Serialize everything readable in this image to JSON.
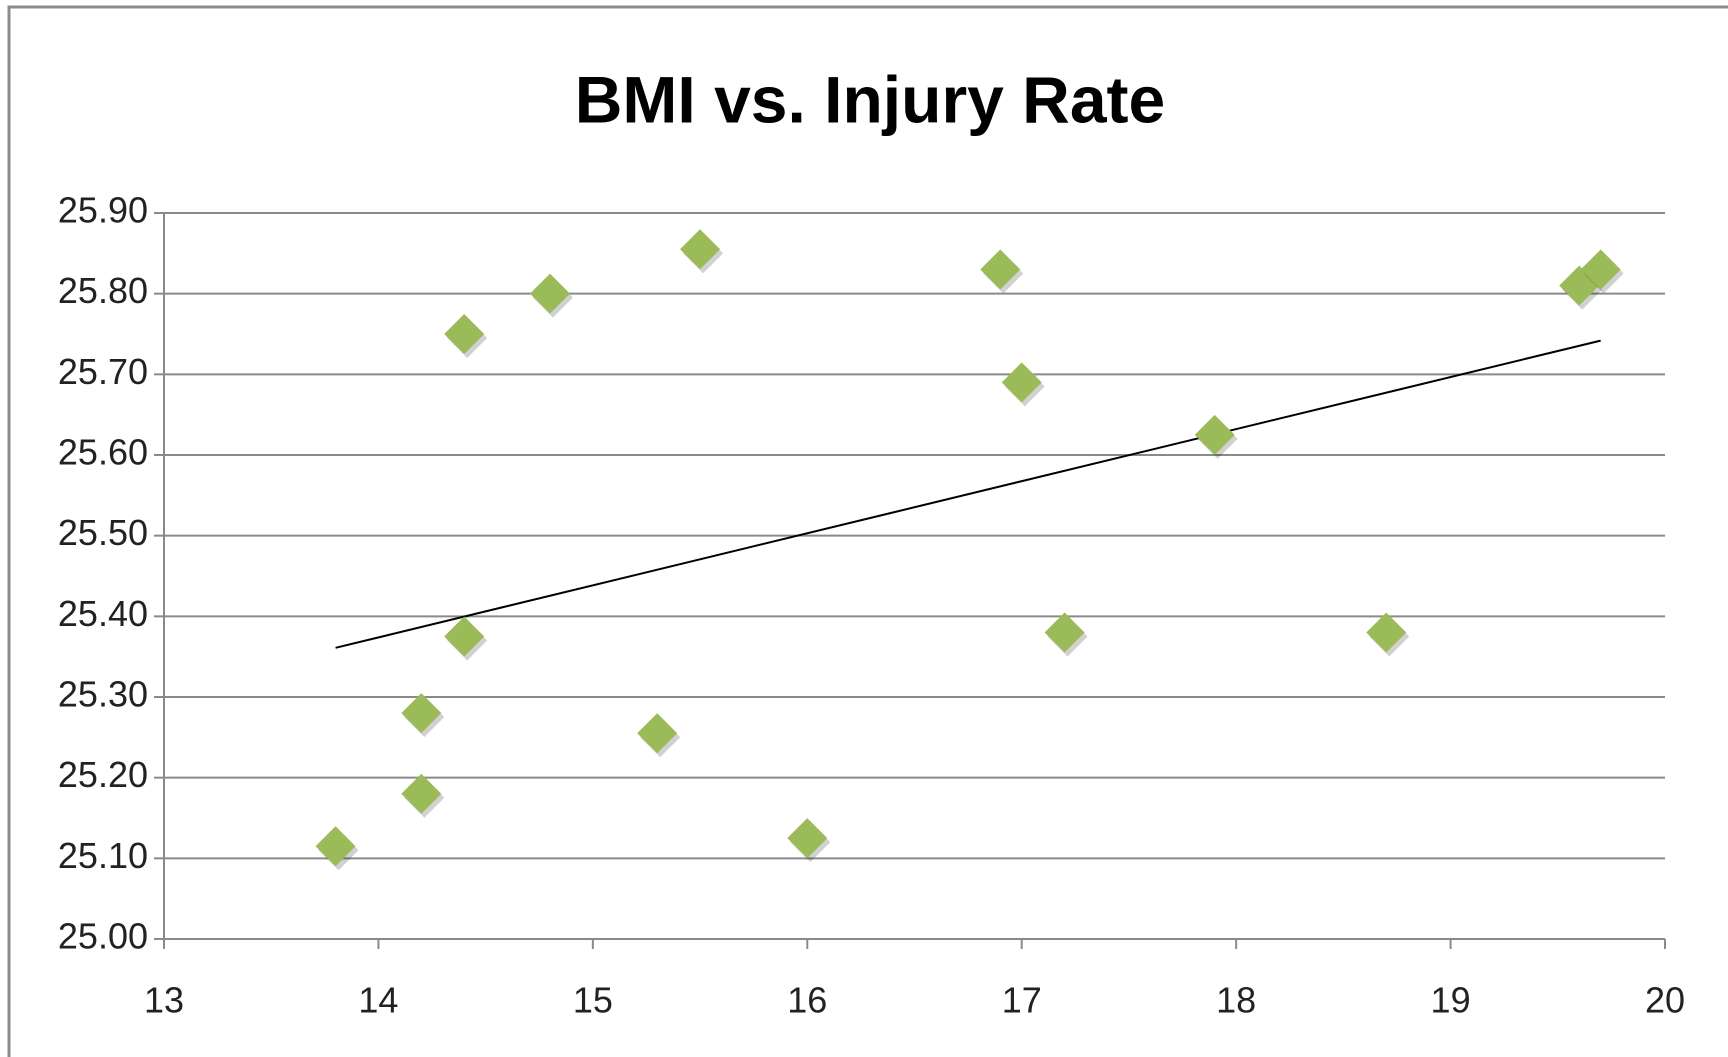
{
  "chart_data": {
    "type": "scatter",
    "title": "BMI vs. Injury Rate",
    "x": [
      13.8,
      14.2,
      14.2,
      14.4,
      14.4,
      14.8,
      15.3,
      15.5,
      16.0,
      16.9,
      17.0,
      17.2,
      17.9,
      18.7,
      19.6,
      19.7
    ],
    "values": [
      25.115,
      25.18,
      25.28,
      25.375,
      25.75,
      25.8,
      25.255,
      25.855,
      25.125,
      25.83,
      25.69,
      25.38,
      25.625,
      25.38,
      25.81,
      25.83
    ],
    "color": "#9bbb59",
    "trendline": true,
    "xlim": [
      13,
      20
    ],
    "xticks": [
      13,
      14,
      15,
      16,
      17,
      18,
      19,
      20
    ],
    "ylim": [
      25.0,
      25.9
    ],
    "yticks": [
      {
        "value": 25.0,
        "label": "25.00"
      },
      {
        "value": 25.1,
        "label": "25.10"
      },
      {
        "value": 25.2,
        "label": "25.20"
      },
      {
        "value": 25.3,
        "label": "25.30"
      },
      {
        "value": 25.4,
        "label": "25.40"
      },
      {
        "value": 25.5,
        "label": "25.50"
      },
      {
        "value": 25.6,
        "label": "25.60"
      },
      {
        "value": 25.7,
        "label": "25.70"
      },
      {
        "value": 25.8,
        "label": "25.80"
      },
      {
        "value": 25.9,
        "label": "25.90"
      }
    ],
    "grid": true
  }
}
